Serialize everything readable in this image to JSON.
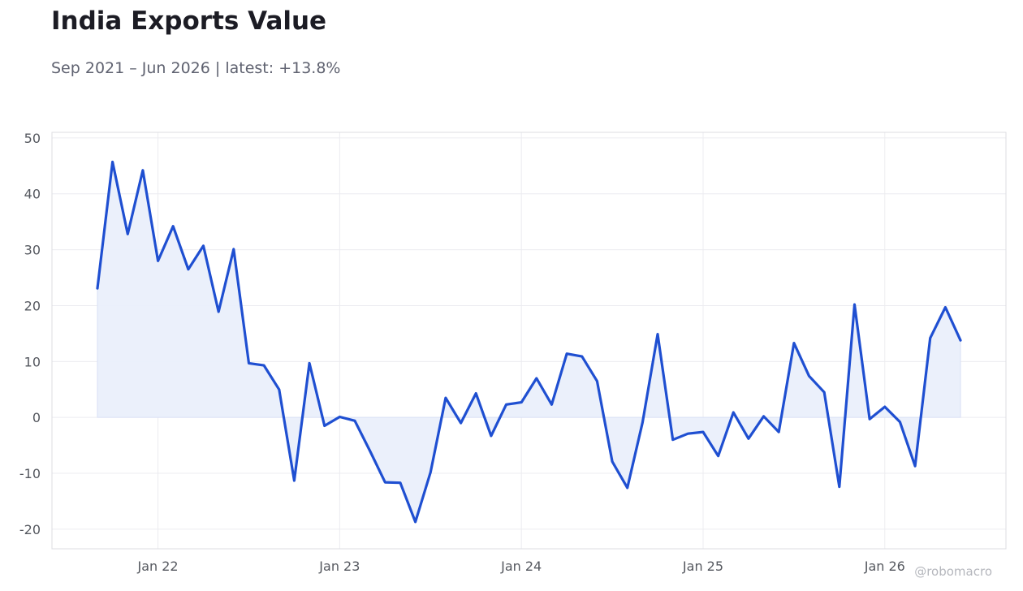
{
  "header": {
    "title": "India Exports Value",
    "subtitle": "Sep 2021 – Jun 2026 | latest: +13.8%"
  },
  "watermark": "@robomacro",
  "colors": {
    "line": "#1f4fd1",
    "fill": "#eaeffb",
    "grid": "#ececf0",
    "frame": "#dcdde2"
  },
  "chart_data": {
    "type": "area",
    "title": "India Exports Value",
    "subtitle": "Sep 2021 – Jun 2026 | latest: +13.8%",
    "xlabel": "",
    "ylabel": "",
    "x_start": "2021-09",
    "x": [
      "2021-09",
      "2021-10",
      "2021-11",
      "2021-12",
      "2022-01",
      "2022-02",
      "2022-03",
      "2022-04",
      "2022-05",
      "2022-06",
      "2022-07",
      "2022-08",
      "2022-09",
      "2022-10",
      "2022-11",
      "2022-12",
      "2023-01",
      "2023-02",
      "2023-03",
      "2023-04",
      "2023-05",
      "2023-06",
      "2023-07",
      "2023-08",
      "2023-09",
      "2023-10",
      "2023-11",
      "2023-12",
      "2024-01",
      "2024-02",
      "2024-03",
      "2024-04",
      "2024-05",
      "2024-06",
      "2024-07",
      "2024-08",
      "2024-09",
      "2024-10",
      "2024-11",
      "2024-12",
      "2025-01",
      "2025-02",
      "2025-03",
      "2025-04",
      "2025-05",
      "2025-06",
      "2025-07",
      "2025-08",
      "2025-09",
      "2025-10",
      "2025-11",
      "2025-12",
      "2026-01",
      "2026-02",
      "2026-03",
      "2026-04",
      "2026-05",
      "2026-06"
    ],
    "values": [
      23.1,
      45.7,
      32.8,
      44.2,
      28.0,
      34.2,
      26.5,
      30.7,
      18.9,
      30.1,
      9.7,
      9.3,
      5.0,
      -11.3,
      9.7,
      -1.5,
      0.1,
      -0.6,
      -6.0,
      -11.6,
      -11.7,
      -18.7,
      -9.8,
      3.5,
      -1.0,
      4.3,
      -3.3,
      2.3,
      2.7,
      7.0,
      2.3,
      11.4,
      10.9,
      6.5,
      -7.9,
      -12.6,
      -0.9,
      14.9,
      -4.0,
      -2.9,
      -2.6,
      -6.9,
      0.9,
      -3.8,
      0.2,
      -2.6,
      13.3,
      7.4,
      4.5,
      -12.4,
      20.2,
      -0.3,
      1.9,
      -0.8,
      -8.7,
      14.2,
      19.7,
      13.8
    ],
    "ylim": [
      -23.5,
      51
    ],
    "yticks": [
      50,
      40,
      30,
      20,
      10,
      0,
      -10,
      -20
    ],
    "ytick_labels": [
      "50",
      "40",
      "30",
      "20",
      "10",
      "0",
      "-10",
      "-20"
    ],
    "xticks": [
      "2022-01",
      "2023-01",
      "2024-01",
      "2025-01",
      "2026-01"
    ],
    "xtick_labels": [
      "Jan 22",
      "Jan 23",
      "Jan 24",
      "Jan 25",
      "Jan 26"
    ],
    "x_range": [
      "2021-06",
      "2026-09"
    ],
    "grid": true,
    "legend": "none"
  }
}
